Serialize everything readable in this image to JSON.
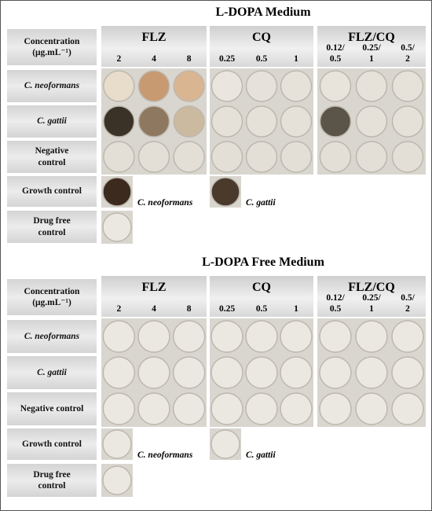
{
  "panels": [
    {
      "title": "L-DOPA Medium",
      "concentration_label": [
        "Concentration",
        "(μg.mL⁻¹)"
      ],
      "groups": [
        {
          "name": "FLZ",
          "concentrations": [
            [
              "2"
            ],
            [
              "4"
            ],
            [
              "8"
            ]
          ]
        },
        {
          "name": "CQ",
          "concentrations": [
            [
              "0.25"
            ],
            [
              "0.5"
            ],
            [
              "1"
            ]
          ]
        },
        {
          "name": "FLZ/CQ",
          "concentrations": [
            [
              "0.12/",
              "0.5"
            ],
            [
              "0.25/",
              "1"
            ],
            [
              "0.5/",
              "2"
            ]
          ]
        }
      ],
      "rows": [
        [
          "C. neoformans"
        ],
        [
          "C. gattii"
        ],
        [
          "Negative",
          "control"
        ]
      ],
      "growth_control": "Growth control",
      "drug_free_control": [
        "Drug free",
        "control"
      ],
      "growth_labels": [
        "C. neoformans",
        "C. gattii"
      ]
    },
    {
      "title": "L-DOPA Free Medium",
      "concentration_label": [
        "Concentration",
        "(μg.mL⁻¹)"
      ],
      "groups": [
        {
          "name": "FLZ",
          "concentrations": [
            [
              "2"
            ],
            [
              "4"
            ],
            [
              "8"
            ]
          ]
        },
        {
          "name": "CQ",
          "concentrations": [
            [
              "0.25"
            ],
            [
              "0.5"
            ],
            [
              "1"
            ]
          ]
        },
        {
          "name": "FLZ/CQ",
          "concentrations": [
            [
              "0.12/",
              "0.5"
            ],
            [
              "0.25/",
              "1"
            ],
            [
              "0.5/",
              "2"
            ]
          ]
        }
      ],
      "rows": [
        [
          "C. neoformans"
        ],
        [
          "C. gattii"
        ],
        [
          "Negative control"
        ]
      ],
      "growth_control": "Growth control",
      "drug_free_control": [
        "Drug free",
        "control"
      ],
      "growth_labels": [
        "C. neoformans",
        "C. gattii"
      ]
    }
  ]
}
